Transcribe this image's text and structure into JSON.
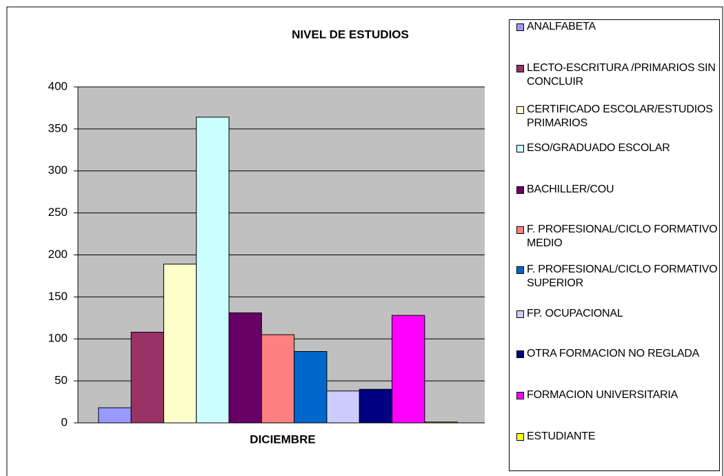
{
  "chart_data": {
    "type": "bar",
    "title": "NIVEL DE ESTUDIOS",
    "categories": [
      "DICIEMBRE"
    ],
    "series": [
      {
        "name": "ANALFABETA",
        "color": "#9999ff",
        "values": [
          18
        ]
      },
      {
        "name": "LECTO-ESCRITURA /PRIMARIOS SIN CONCLUIR",
        "color": "#993366",
        "values": [
          108
        ]
      },
      {
        "name": "CERTIFICADO ESCOLAR/ESTUDIOS PRIMARIOS",
        "color": "#ffffcc",
        "values": [
          189
        ]
      },
      {
        "name": "ESO/GRADUADO ESCOLAR",
        "color": "#ccffff",
        "values": [
          364
        ]
      },
      {
        "name": "BACHILLER/COU",
        "color": "#660066",
        "values": [
          131
        ]
      },
      {
        "name": "F. PROFESIONAL/CICLO FORMATIVO MEDIO",
        "color": "#ff8080",
        "values": [
          105
        ]
      },
      {
        "name": "F. PROFESIONAL/CICLO FORMATIVO SUPERIOR",
        "color": "#0066cc",
        "values": [
          85
        ]
      },
      {
        "name": "FP. OCUPACIONAL",
        "color": "#ccccff",
        "values": [
          38
        ]
      },
      {
        "name": "OTRA FORMACION NO REGLADA",
        "color": "#000080",
        "values": [
          40
        ]
      },
      {
        "name": "FORMACION UNIVERSITARIA",
        "color": "#ff00ff",
        "values": [
          128
        ]
      },
      {
        "name": "ESTUDIANTE",
        "color": "#ffff00",
        "values": [
          1
        ]
      }
    ],
    "ylim": [
      0,
      400
    ],
    "yticks": [
      0,
      50,
      100,
      150,
      200,
      250,
      300,
      350,
      400
    ],
    "grid": true,
    "legend": "right"
  }
}
